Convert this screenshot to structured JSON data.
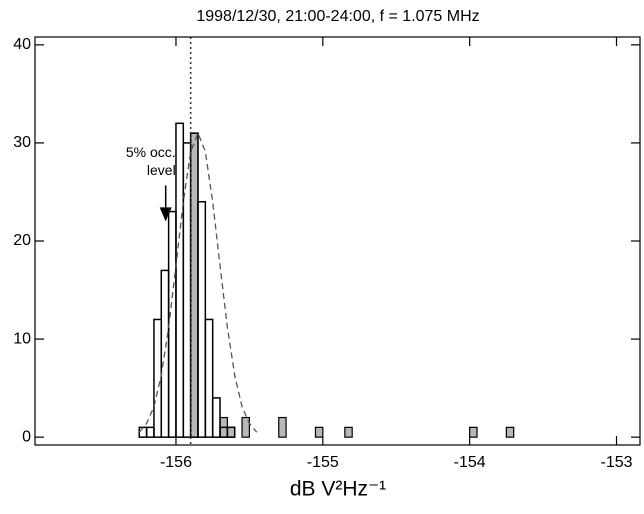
{
  "chart_data": {
    "type": "histogram",
    "title": "1998/12/30, 21:00-24:00,  f = 1.075 MHz",
    "xlabel": "dB  V²Hz⁻¹",
    "xlim": [
      -156.96,
      -152.84
    ],
    "xticks": [
      -156,
      -155,
      -154,
      -153
    ],
    "ylim": [
      -0.8,
      40.8
    ],
    "yticks": [
      0,
      10,
      20,
      30,
      40
    ],
    "bins": [
      -156.25,
      -156.2,
      -156.15,
      -156.1,
      -156.05,
      -156.0,
      -155.95,
      -155.9,
      -155.85,
      -155.8,
      -155.75,
      -155.7,
      -155.65,
      -155.6,
      -155.55,
      -155.5
    ],
    "counts": [
      1,
      1,
      12,
      17,
      23,
      32,
      30,
      31,
      24,
      12,
      4,
      1,
      1,
      0,
      0
    ],
    "shaded": {
      "color": "#b8b8b8",
      "width": 0.05,
      "x": [
        -155.9,
        -155.7,
        -155.65,
        -155.55,
        -155.3,
        -155.05,
        -154.85,
        -154.0,
        -153.75
      ],
      "values": [
        31,
        2,
        1,
        2,
        2,
        1,
        1,
        1,
        1
      ]
    },
    "fit": {
      "x": [
        -156.25,
        -156.2,
        -156.15,
        -156.1,
        -156.05,
        -156.0,
        -155.95,
        -155.9,
        -155.85,
        -155.8,
        -155.75,
        -155.7,
        -155.65,
        -155.6,
        -155.55,
        -155.5,
        -155.45
      ],
      "values": [
        0.5,
        1.4,
        3.1,
        6.3,
        11.2,
        17.5,
        24.0,
        29.1,
        31,
        29.1,
        24.0,
        17.5,
        11.2,
        6.3,
        3.1,
        1.4,
        0.5
      ]
    },
    "vline": -155.9,
    "annotation": {
      "lines": [
        "5% occ.",
        "level"
      ],
      "x": -156.07,
      "y": 22
    }
  }
}
